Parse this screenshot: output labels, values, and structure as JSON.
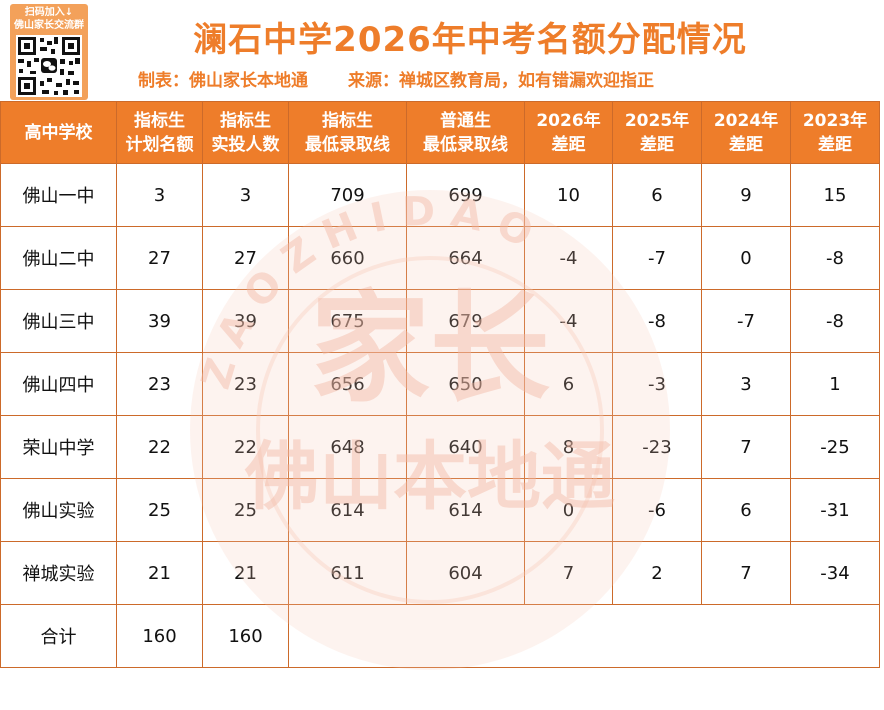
{
  "qr": {
    "caption_line1": "扫码加入↓",
    "caption_line2": "佛山家长交流群"
  },
  "title": "澜石中学2026年中考名额分配情况",
  "subtitle": {
    "maker": "制表：佛山家长本地通",
    "source": "来源：禅城区教育局，如有错漏欢迎指正"
  },
  "table": {
    "headers": [
      {
        "line1": "高中学校",
        "line2": ""
      },
      {
        "line1": "指标生",
        "line2": "计划名额"
      },
      {
        "line1": "指标生",
        "line2": "实投人数"
      },
      {
        "line1": "指标生",
        "line2": "最低录取线"
      },
      {
        "line1": "普通生",
        "line2": "最低录取线"
      },
      {
        "line1": "2026年",
        "line2": "差距"
      },
      {
        "line1": "2025年",
        "line2": "差距"
      },
      {
        "line1": "2024年",
        "line2": "差距"
      },
      {
        "line1": "2023年",
        "line2": "差距"
      }
    ],
    "rows": [
      [
        "佛山一中",
        "3",
        "3",
        "709",
        "699",
        "10",
        "6",
        "9",
        "15"
      ],
      [
        "佛山二中",
        "27",
        "27",
        "660",
        "664",
        "-4",
        "-7",
        "0",
        "-8"
      ],
      [
        "佛山三中",
        "39",
        "39",
        "675",
        "679",
        "-4",
        "-8",
        "-7",
        "-8"
      ],
      [
        "佛山四中",
        "23",
        "23",
        "656",
        "650",
        "6",
        "-3",
        "3",
        "1"
      ],
      [
        "荣山中学",
        "22",
        "22",
        "648",
        "640",
        "8",
        "-23",
        "7",
        "-25"
      ],
      [
        "佛山实验",
        "25",
        "25",
        "614",
        "614",
        "0",
        "-6",
        "6",
        "-31"
      ],
      [
        "禅城实验",
        "21",
        "21",
        "611",
        "604",
        "7",
        "2",
        "7",
        "-34"
      ]
    ],
    "total": {
      "label": "合计",
      "plan": "160",
      "actual": "160"
    }
  },
  "watermark": {
    "main": "家长",
    "sub": "佛山本地通",
    "ring": "ZAOZHIDAO"
  },
  "colors": {
    "accent": "#ee7d2a",
    "border": "#cc6a2a",
    "watermark": "#f6c8b8"
  }
}
